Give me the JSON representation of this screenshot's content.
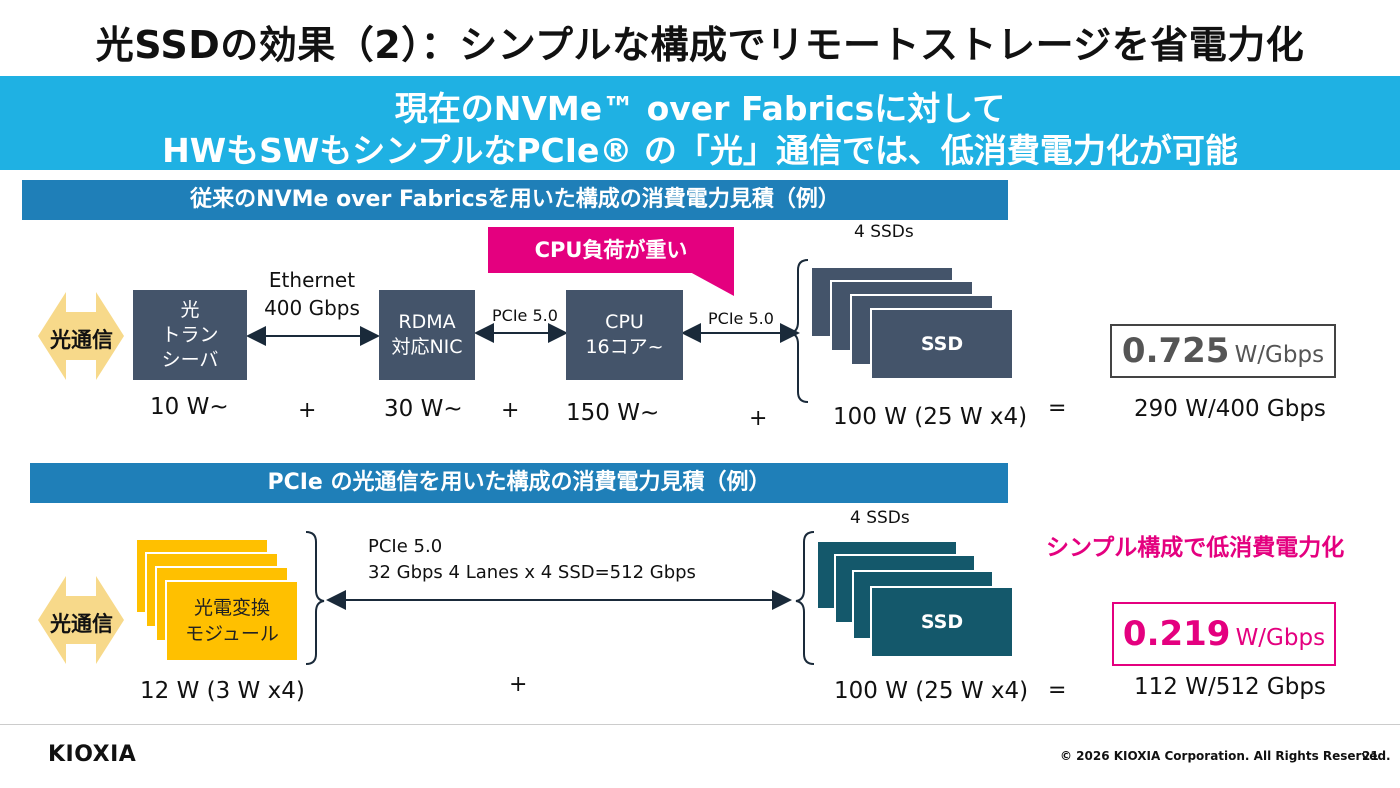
{
  "title": "光SSDの効果（2）：シンプルな構成でリモートストレージを省電力化",
  "banner": {
    "line1": "現在のNVMe™ over Fabricsに対して",
    "line2": "HWもSWもシンプルなPCIe® の「光」通信では、低消費電力化が可能"
  },
  "section1": {
    "header": "従来のNVMe over Fabricsを用いた構成の消費電力見積（例）",
    "optical_label": "光通信",
    "transceiver": "光\nトラン\nシーバ",
    "ethernet_label": "Ethernet\n400 Gbps",
    "rdma": "RDMA\n対応NIC",
    "pcie_a": "PCIe 5.0",
    "cpu": "CPU\n16コア~",
    "pcie_b": "PCIe 5.0",
    "cpu_callout": "CPU負荷が重い",
    "ssd_count": "4 SSDs",
    "ssd_label": "SSD",
    "power_transceiver": "10 W~",
    "power_nic": "30 W~",
    "power_cpu": "150 W~",
    "power_ssd": "100 W (25 W x4)",
    "plus": "+",
    "equals": "=",
    "result_value": "0.725",
    "result_unit": "W/Gbps",
    "result_total": "290 W/400 Gbps"
  },
  "section2": {
    "header": "PCIe の光通信を用いた構成の消費電力見積（例）",
    "optical_label": "光通信",
    "module": "光電変換\nモジュール",
    "pcie_line1": "PCIe 5.0",
    "pcie_line2": "32 Gbps 4 Lanes x 4 SSD=512 Gbps",
    "ssd_count": "4 SSDs",
    "ssd_label": "SSD",
    "power_module": "12 W (3 W x4)",
    "power_ssd": "100 W (25 W x4)",
    "plus": "+",
    "equals": "=",
    "simple_note": "シンプル構成で低消費電力化",
    "result_value": "0.219",
    "result_unit": "W/Gbps",
    "result_total": "112 W/512 Gbps"
  },
  "footer": {
    "logo": "KIOXIA",
    "copyright": "© 2026 KIOXIA Corporation. All Rights Reserved.",
    "page": "21"
  },
  "colors": {
    "banner": "#1fb1e3",
    "section_header": "#1f7fb8",
    "box": "#44546a",
    "ssd_teal": "#14586b",
    "module": "#ffc000",
    "accent_pink": "#e4007f",
    "optical_arrow": "#f7d98a"
  }
}
